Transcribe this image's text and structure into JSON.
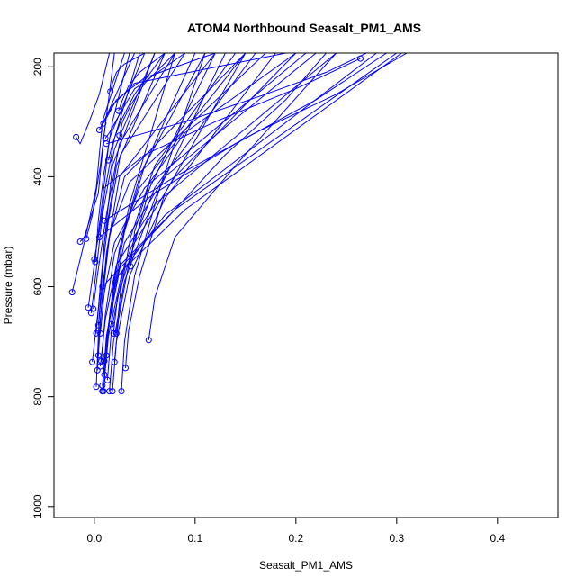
{
  "chart_data": {
    "type": "line",
    "title": "ATOM4 Northbound Seasalt_PM1_AMS",
    "xlabel": "Seasalt_PM1_AMS",
    "ylabel": "Pressure (mbar)",
    "xlim": [
      -0.04,
      0.46
    ],
    "ylim": [
      1020,
      175
    ],
    "y_reversed": true,
    "x_ticks": [
      0.0,
      0.1,
      0.2,
      0.3,
      0.4
    ],
    "x_tick_labels": [
      "0.0",
      "0.1",
      "0.2",
      "0.3",
      "0.4"
    ],
    "y_ticks": [
      200,
      400,
      600,
      800,
      1000
    ],
    "y_tick_labels": [
      "200",
      "400",
      "600",
      "800",
      "1000"
    ],
    "grid": false,
    "series_color": "#0000ff",
    "marker": "open-circle",
    "profiles": [
      {
        "x": [
          -0.022,
          -0.01,
          0.002,
          0.008,
          0.03
        ],
        "y": [
          610,
          520,
          420,
          300,
          175
        ]
      },
      {
        "x": [
          -0.018,
          -0.014,
          -0.005,
          0.005,
          0.015
        ],
        "y": [
          328,
          340,
          300,
          250,
          175
        ]
      },
      {
        "x": [
          -0.014,
          -0.01,
          0.004,
          0.01,
          0.02
        ],
        "y": [
          518,
          510,
          430,
          320,
          175
        ]
      },
      {
        "x": [
          -0.008,
          -0.002,
          0.006,
          0.012,
          0.04
        ],
        "y": [
          513,
          470,
          380,
          290,
          175
        ]
      },
      {
        "x": [
          -0.006,
          0.0,
          0.007,
          0.015,
          0.05
        ],
        "y": [
          638,
          560,
          460,
          330,
          175
        ]
      },
      {
        "x": [
          -0.003,
          0.002,
          0.008,
          0.02,
          0.06
        ],
        "y": [
          648,
          570,
          470,
          350,
          175
        ]
      },
      {
        "x": [
          -0.002,
          0.004,
          0.01,
          0.022,
          0.07
        ],
        "y": [
          737,
          640,
          520,
          380,
          175
        ]
      },
      {
        "x": [
          -0.001,
          0.003,
          0.012,
          0.025,
          0.08
        ],
        "y": [
          640,
          580,
          470,
          340,
          175
        ]
      },
      {
        "x": [
          0.0,
          0.005,
          0.011,
          0.02,
          0.045
        ],
        "y": [
          550,
          500,
          420,
          330,
          175
        ]
      },
      {
        "x": [
          0.001,
          0.004,
          0.009,
          0.018,
          0.035
        ],
        "y": [
          555,
          480,
          400,
          300,
          175
        ]
      },
      {
        "x": [
          0.002,
          0.006,
          0.014,
          0.026,
          0.09
        ],
        "y": [
          685,
          600,
          480,
          360,
          175
        ]
      },
      {
        "x": [
          0.002,
          0.005,
          0.01,
          0.018,
          0.06
        ],
        "y": [
          782,
          650,
          520,
          380,
          175
        ]
      },
      {
        "x": [
          0.003,
          0.006,
          0.012,
          0.025,
          0.12
        ],
        "y": [
          752,
          660,
          540,
          400,
          175
        ]
      },
      {
        "x": [
          0.004,
          0.007,
          0.015,
          0.03,
          0.15
        ],
        "y": [
          725,
          640,
          510,
          400,
          175
        ]
      },
      {
        "x": [
          0.004,
          0.008,
          0.016,
          0.035,
          0.17
        ],
        "y": [
          670,
          600,
          500,
          410,
          175
        ]
      },
      {
        "x": [
          0.005,
          0.009,
          0.018,
          0.04,
          0.19
        ],
        "y": [
          315,
          300,
          270,
          230,
          175
        ]
      },
      {
        "x": [
          0.006,
          0.01,
          0.02,
          0.05,
          0.21
        ],
        "y": [
          685,
          610,
          520,
          420,
          175
        ]
      },
      {
        "x": [
          0.006,
          0.011,
          0.022,
          0.06,
          0.24
        ],
        "y": [
          745,
          660,
          560,
          450,
          175
        ]
      },
      {
        "x": [
          0.007,
          0.011,
          0.02,
          0.045,
          0.15
        ],
        "y": [
          735,
          650,
          540,
          420,
          175
        ]
      },
      {
        "x": [
          0.008,
          0.012,
          0.024,
          0.07,
          0.28
        ],
        "y": [
          790,
          690,
          580,
          470,
          175
        ]
      },
      {
        "x": [
          0.008,
          0.013,
          0.026,
          0.08,
          0.3
        ],
        "y": [
          780,
          680,
          560,
          460,
          175
        ]
      },
      {
        "x": [
          0.009,
          0.014,
          0.028,
          0.09,
          0.305
        ],
        "y": [
          790,
          690,
          570,
          460,
          175
        ]
      },
      {
        "x": [
          0.009,
          0.013,
          0.022,
          0.05,
          0.12
        ],
        "y": [
          303,
          290,
          260,
          220,
          175
        ]
      },
      {
        "x": [
          0.01,
          0.014,
          0.02,
          0.035,
          0.08
        ],
        "y": [
          760,
          680,
          580,
          450,
          175
        ]
      },
      {
        "x": [
          0.01,
          0.016,
          0.03,
          0.07,
          0.22
        ],
        "y": [
          735,
          640,
          520,
          400,
          175
        ]
      },
      {
        "x": [
          0.011,
          0.015,
          0.024,
          0.04,
          0.09
        ],
        "y": [
          330,
          320,
          290,
          240,
          175
        ]
      },
      {
        "x": [
          0.012,
          0.016,
          0.025,
          0.045,
          0.1
        ],
        "y": [
          725,
          640,
          530,
          400,
          175
        ]
      },
      {
        "x": [
          0.013,
          0.017,
          0.03,
          0.06,
          0.16
        ],
        "y": [
          770,
          680,
          560,
          420,
          175
        ]
      },
      {
        "x": [
          0.014,
          0.018,
          0.026,
          0.04,
          0.07
        ],
        "y": [
          370,
          340,
          300,
          250,
          175
        ]
      },
      {
        "x": [
          0.015,
          0.019,
          0.03,
          0.06,
          0.13
        ],
        "y": [
          790,
          700,
          590,
          440,
          175
        ]
      },
      {
        "x": [
          0.016,
          0.018,
          0.022,
          0.03,
          0.05
        ],
        "y": [
          245,
          230,
          210,
          195,
          175
        ]
      },
      {
        "x": [
          0.017,
          0.02,
          0.03,
          0.05,
          0.11
        ],
        "y": [
          668,
          600,
          500,
          380,
          175
        ]
      },
      {
        "x": [
          0.018,
          0.022,
          0.035,
          0.07,
          0.18
        ],
        "y": [
          790,
          700,
          580,
          440,
          175
        ]
      },
      {
        "x": [
          0.019,
          0.023,
          0.04,
          0.08,
          0.2
        ],
        "y": [
          685,
          620,
          520,
          400,
          175
        ]
      },
      {
        "x": [
          0.02,
          0.024,
          0.034,
          0.055,
          0.12
        ],
        "y": [
          737,
          660,
          560,
          420,
          175
        ]
      },
      {
        "x": [
          0.022,
          0.026,
          0.036,
          0.06,
          0.14
        ],
        "y": [
          685,
          610,
          510,
          380,
          175
        ]
      },
      {
        "x": [
          0.024,
          0.028,
          0.034,
          0.045,
          0.07
        ],
        "y": [
          280,
          260,
          235,
          210,
          175
        ]
      },
      {
        "x": [
          0.025,
          0.028,
          0.036,
          0.05,
          0.08
        ],
        "y": [
          325,
          300,
          270,
          230,
          175
        ]
      },
      {
        "x": [
          0.027,
          0.03,
          0.04,
          0.065,
          0.11
        ],
        "y": [
          790,
          700,
          580,
          420,
          175
        ]
      },
      {
        "x": [
          0.031,
          0.034,
          0.045,
          0.07,
          0.15
        ],
        "y": [
          748,
          680,
          580,
          430,
          175
        ]
      },
      {
        "x": [
          0.036,
          0.04,
          0.055,
          0.09,
          0.2
        ],
        "y": [
          563,
          500,
          410,
          320,
          175
        ]
      },
      {
        "x": [
          0.054,
          0.06,
          0.08,
          0.14,
          0.24
        ],
        "y": [
          697,
          620,
          510,
          380,
          175
        ]
      },
      {
        "x": [
          0.264,
          0.2,
          0.12,
          0.05,
          0.01
        ],
        "y": [
          185,
          240,
          300,
          360,
          420
        ]
      },
      {
        "x": [
          0.01,
          0.08,
          0.16,
          0.24,
          0.31
        ],
        "y": [
          480,
          400,
          320,
          250,
          175
        ]
      },
      {
        "x": [
          0.005,
          0.06,
          0.14,
          0.22,
          0.29
        ],
        "y": [
          510,
          430,
          340,
          260,
          175
        ]
      },
      {
        "x": [
          0.012,
          0.09,
          0.17,
          0.23,
          0.27
        ],
        "y": [
          340,
          300,
          250,
          210,
          175
        ]
      },
      {
        "x": [
          0.008,
          0.07,
          0.13,
          0.19,
          0.23
        ],
        "y": [
          600,
          480,
          360,
          260,
          175
        ]
      }
    ]
  }
}
